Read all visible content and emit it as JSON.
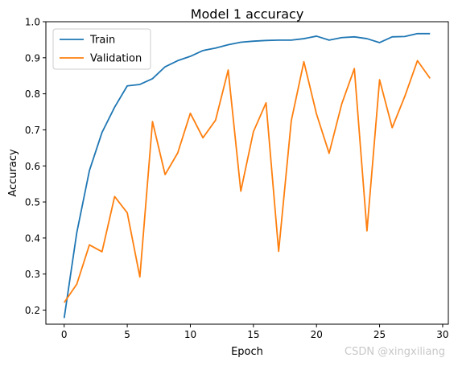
{
  "colors": {
    "train": "#1f77b4",
    "validation": "#ff7f0e"
  },
  "watermark": "CSDN @xingxiliang",
  "chart_data": {
    "type": "line",
    "title": "Model 1 accuracy",
    "xlabel": "Epoch",
    "ylabel": "Accuracy",
    "xlim": [
      -1.45,
      30.45
    ],
    "ylim": [
      0.161,
      1.0
    ],
    "xticks": [
      0,
      5,
      10,
      15,
      20,
      25,
      30
    ],
    "yticks": [
      0.2,
      0.3,
      0.4,
      0.5,
      0.6,
      0.7,
      0.8,
      0.9,
      1.0
    ],
    "xtick_labels": [
      "0",
      "5",
      "10",
      "15",
      "20",
      "25",
      "30"
    ],
    "ytick_labels": [
      "0.2",
      "0.3",
      "0.4",
      "0.5",
      "0.6",
      "0.7",
      "0.8",
      "0.9",
      "1.0"
    ],
    "grid": false,
    "legend_position": "top-left",
    "x": [
      0,
      1,
      2,
      3,
      4,
      5,
      6,
      7,
      8,
      9,
      10,
      11,
      12,
      13,
      14,
      15,
      16,
      17,
      18,
      19,
      20,
      21,
      22,
      23,
      24,
      25,
      26,
      27,
      28,
      29
    ],
    "series": [
      {
        "name": "Train",
        "values": [
          0.178,
          0.415,
          0.587,
          0.693,
          0.763,
          0.822,
          0.826,
          0.842,
          0.875,
          0.892,
          0.904,
          0.92,
          0.927,
          0.936,
          0.943,
          0.946,
          0.948,
          0.949,
          0.949,
          0.953,
          0.96,
          0.949,
          0.956,
          0.958,
          0.953,
          0.942,
          0.958,
          0.959,
          0.967,
          0.967
        ]
      },
      {
        "name": "Validation",
        "values": [
          0.221,
          0.272,
          0.381,
          0.362,
          0.515,
          0.47,
          0.292,
          0.723,
          0.576,
          0.636,
          0.746,
          0.678,
          0.727,
          0.866,
          0.53,
          0.695,
          0.775,
          0.363,
          0.725,
          0.889,
          0.744,
          0.635,
          0.772,
          0.87,
          0.42,
          0.839,
          0.706,
          0.793,
          0.892,
          0.843
        ]
      }
    ]
  }
}
